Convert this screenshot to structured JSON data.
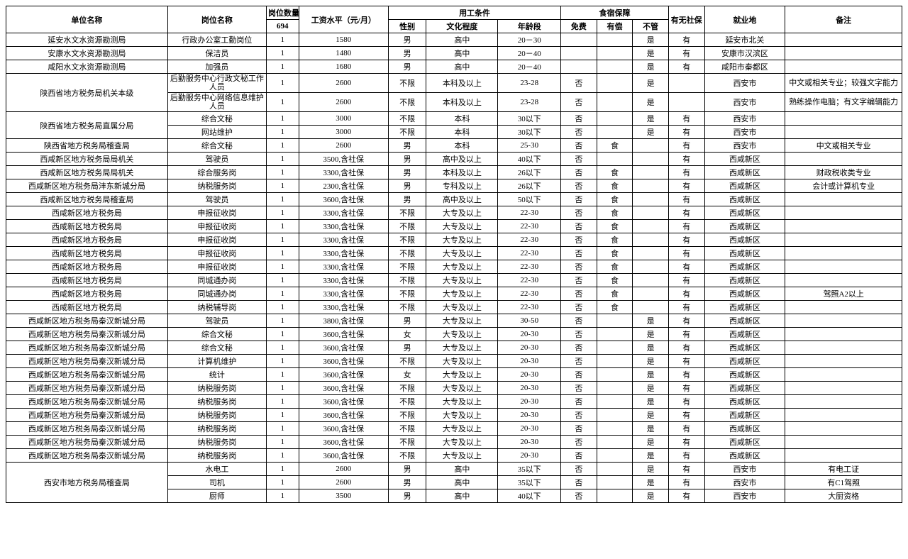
{
  "headers": {
    "unit": "单位名称",
    "position": "岗位名称",
    "qty_group": "岗位数量",
    "qty_total": "694",
    "salary": "工资水平（元/月）",
    "cond_group": "用工条件",
    "sex": "性别",
    "edu": "文化程度",
    "age": "年龄段",
    "board_group": "食宿保障",
    "free": "免费",
    "paid": "有偿",
    "none_": "不管",
    "shebao": "有无社保",
    "loc": "就业地",
    "remark": "备注"
  },
  "rows": [
    {
      "unit": "延安水文水资源勘测局",
      "pos": "行政办公室工勤岗位",
      "qty": "1",
      "sal": "1580",
      "sex": "男",
      "edu": "高中",
      "age": "20－30",
      "free": "",
      "paid": "",
      "none_": "是",
      "she": "有",
      "loc": "延安市北关",
      "rem": ""
    },
    {
      "unit": "安康水文水资源勘测局",
      "pos": "保洁员",
      "qty": "1",
      "sal": "1480",
      "sex": "男",
      "edu": "高中",
      "age": "20－40",
      "free": "",
      "paid": "",
      "none_": "是",
      "she": "有",
      "loc": "安康市汉滨区",
      "rem": ""
    },
    {
      "unit": "咸阳水文水资源勘测局",
      "pos": "加强员",
      "qty": "1",
      "sal": "1680",
      "sex": "男",
      "edu": "高中",
      "age": "20－40",
      "free": "",
      "paid": "",
      "none_": "是",
      "she": "有",
      "loc": "咸阳市秦都区",
      "rem": ""
    },
    {
      "unit": "陕西省地方税务局机关本级",
      "unit_rowspan": 2,
      "pos": "后勤服务中心行政文秘工作人员",
      "qty": "1",
      "sal": "2600",
      "sex": "不限",
      "edu": "本科及以上",
      "age": "23-28",
      "free": "否",
      "paid": "",
      "none_": "是",
      "she": "",
      "loc": "西安市",
      "rem": "中文或相关专业；较强文字能力"
    },
    {
      "pos": "后勤服务中心网络信息维护人员",
      "qty": "1",
      "sal": "2600",
      "sex": "不限",
      "edu": "本科及以上",
      "age": "23-28",
      "free": "否",
      "paid": "",
      "none_": "是",
      "she": "",
      "loc": "西安市",
      "rem": "熟练操作电脑；有文字编辑能力"
    },
    {
      "unit": "陕西省地方税务局直属分局",
      "unit_rowspan": 2,
      "pos": "综合文秘",
      "qty": "1",
      "sal": "3000",
      "sex": "不限",
      "edu": "本科",
      "age": "30以下",
      "free": "否",
      "paid": "",
      "none_": "是",
      "she": "有",
      "loc": "西安市",
      "rem": ""
    },
    {
      "pos": "网站维护",
      "qty": "1",
      "sal": "3000",
      "sex": "不限",
      "edu": "本科",
      "age": "30以下",
      "free": "否",
      "paid": "",
      "none_": "是",
      "she": "有",
      "loc": "西安市",
      "rem": ""
    },
    {
      "unit": "陕西省地方税务局稽查局",
      "pos": "综合文秘",
      "qty": "1",
      "sal": "2600",
      "sex": "男",
      "edu": "本科",
      "age": "25-30",
      "free": "否",
      "paid": "食",
      "none_": "",
      "she": "有",
      "loc": "西安市",
      "rem": "中文或相关专业"
    },
    {
      "unit": "西咸新区地方税务局局机关",
      "pos": "驾驶员",
      "qty": "1",
      "sal": "3500,含社保",
      "sex": "男",
      "edu": "高中及以上",
      "age": "40以下",
      "free": "否",
      "paid": "",
      "none_": "",
      "she": "有",
      "loc": "西咸新区",
      "rem": ""
    },
    {
      "unit": "西咸新区地方税务局局机关",
      "pos": "综合服务岗",
      "qty": "1",
      "sal": "3300,含社保",
      "sex": "男",
      "edu": "本科及以上",
      "age": "26以下",
      "free": "否",
      "paid": "食",
      "none_": "",
      "she": "有",
      "loc": "西咸新区",
      "rem": "财政税收类专业"
    },
    {
      "unit": "西咸新区地方税务局沣东新城分局",
      "pos": "纳税服务岗",
      "qty": "1",
      "sal": "2300,含社保",
      "sex": "男",
      "edu": "专科及以上",
      "age": "26以下",
      "free": "否",
      "paid": "食",
      "none_": "",
      "she": "有",
      "loc": "西咸新区",
      "rem": "会计或计算机专业"
    },
    {
      "unit": "西咸新区地方税务局稽查局",
      "pos": "驾驶员",
      "qty": "1",
      "sal": "3600,含社保",
      "sex": "男",
      "edu": "高中及以上",
      "age": "50以下",
      "free": "否",
      "paid": "食",
      "none_": "",
      "she": "有",
      "loc": "西咸新区",
      "rem": ""
    },
    {
      "unit": "西咸新区地方税务局",
      "pos": "申报征收岗",
      "qty": "1",
      "sal": "3300,含社保",
      "sex": "不限",
      "edu": "大专及以上",
      "age": "22-30",
      "free": "否",
      "paid": "食",
      "none_": "",
      "she": "有",
      "loc": "西咸新区",
      "rem": ""
    },
    {
      "unit": "西咸新区地方税务局",
      "pos": "申报征收岗",
      "qty": "1",
      "sal": "3300,含社保",
      "sex": "不限",
      "edu": "大专及以上",
      "age": "22-30",
      "free": "否",
      "paid": "食",
      "none_": "",
      "she": "有",
      "loc": "西咸新区",
      "rem": ""
    },
    {
      "unit": "西咸新区地方税务局",
      "pos": "申报征收岗",
      "qty": "1",
      "sal": "3300,含社保",
      "sex": "不限",
      "edu": "大专及以上",
      "age": "22-30",
      "free": "否",
      "paid": "食",
      "none_": "",
      "she": "有",
      "loc": "西咸新区",
      "rem": ""
    },
    {
      "unit": "西咸新区地方税务局",
      "pos": "申报征收岗",
      "qty": "1",
      "sal": "3300,含社保",
      "sex": "不限",
      "edu": "大专及以上",
      "age": "22-30",
      "free": "否",
      "paid": "食",
      "none_": "",
      "she": "有",
      "loc": "西咸新区",
      "rem": ""
    },
    {
      "unit": "西咸新区地方税务局",
      "pos": "申报征收岗",
      "qty": "1",
      "sal": "3300,含社保",
      "sex": "不限",
      "edu": "大专及以上",
      "age": "22-30",
      "free": "否",
      "paid": "食",
      "none_": "",
      "she": "有",
      "loc": "西咸新区",
      "rem": ""
    },
    {
      "unit": "西咸新区地方税务局",
      "pos": "同城通办岗",
      "qty": "1",
      "sal": "3300,含社保",
      "sex": "不限",
      "edu": "大专及以上",
      "age": "22-30",
      "free": "否",
      "paid": "食",
      "none_": "",
      "she": "有",
      "loc": "西咸新区",
      "rem": ""
    },
    {
      "unit": "西咸新区地方税务局",
      "pos": "同城通办岗",
      "qty": "1",
      "sal": "3300,含社保",
      "sex": "不限",
      "edu": "大专及以上",
      "age": "22-30",
      "free": "否",
      "paid": "食",
      "none_": "",
      "she": "有",
      "loc": "西咸新区",
      "rem": "驾照A2以上"
    },
    {
      "unit": "西咸新区地方税务局",
      "pos": "纳税辅导岗",
      "qty": "1",
      "sal": "3300,含社保",
      "sex": "不限",
      "edu": "大专及以上",
      "age": "22-30",
      "free": "否",
      "paid": "食",
      "none_": "",
      "she": "有",
      "loc": "西咸新区",
      "rem": ""
    },
    {
      "unit": "西咸新区地方税务局秦汉新城分局",
      "pos": "驾驶员",
      "qty": "1",
      "sal": "3800,含社保",
      "sex": "男",
      "edu": "大专及以上",
      "age": "30-50",
      "free": "否",
      "paid": "",
      "none_": "是",
      "she": "有",
      "loc": "西咸新区",
      "rem": ""
    },
    {
      "unit": "西咸新区地方税务局秦汉新城分局",
      "pos": "综合文秘",
      "qty": "1",
      "sal": "3600,含社保",
      "sex": "女",
      "edu": "大专及以上",
      "age": "20-30",
      "free": "否",
      "paid": "",
      "none_": "是",
      "she": "有",
      "loc": "西咸新区",
      "rem": ""
    },
    {
      "unit": "西咸新区地方税务局秦汉新城分局",
      "pos": "综合文秘",
      "qty": "1",
      "sal": "3600,含社保",
      "sex": "男",
      "edu": "大专及以上",
      "age": "20-30",
      "free": "否",
      "paid": "",
      "none_": "是",
      "she": "有",
      "loc": "西咸新区",
      "rem": ""
    },
    {
      "unit": "西咸新区地方税务局秦汉新城分局",
      "pos": "计算机维护",
      "qty": "1",
      "sal": "3600,含社保",
      "sex": "不限",
      "edu": "大专及以上",
      "age": "20-30",
      "free": "否",
      "paid": "",
      "none_": "是",
      "she": "有",
      "loc": "西咸新区",
      "rem": ""
    },
    {
      "unit": "西咸新区地方税务局秦汉新城分局",
      "pos": "统计",
      "qty": "1",
      "sal": "3600,含社保",
      "sex": "女",
      "edu": "大专及以上",
      "age": "20-30",
      "free": "否",
      "paid": "",
      "none_": "是",
      "she": "有",
      "loc": "西咸新区",
      "rem": ""
    },
    {
      "unit": "西咸新区地方税务局秦汉新城分局",
      "pos": "纳税服务岗",
      "qty": "1",
      "sal": "3600,含社保",
      "sex": "不限",
      "edu": "大专及以上",
      "age": "20-30",
      "free": "否",
      "paid": "",
      "none_": "是",
      "she": "有",
      "loc": "西咸新区",
      "rem": ""
    },
    {
      "unit": "西咸新区地方税务局秦汉新城分局",
      "pos": "纳税服务岗",
      "qty": "1",
      "sal": "3600,含社保",
      "sex": "不限",
      "edu": "大专及以上",
      "age": "20-30",
      "free": "否",
      "paid": "",
      "none_": "是",
      "she": "有",
      "loc": "西咸新区",
      "rem": ""
    },
    {
      "unit": "西咸新区地方税务局秦汉新城分局",
      "pos": "纳税服务岗",
      "qty": "1",
      "sal": "3600,含社保",
      "sex": "不限",
      "edu": "大专及以上",
      "age": "20-30",
      "free": "否",
      "paid": "",
      "none_": "是",
      "she": "有",
      "loc": "西咸新区",
      "rem": ""
    },
    {
      "unit": "西咸新区地方税务局秦汉新城分局",
      "pos": "纳税服务岗",
      "qty": "1",
      "sal": "3600,含社保",
      "sex": "不限",
      "edu": "大专及以上",
      "age": "20-30",
      "free": "否",
      "paid": "",
      "none_": "是",
      "she": "有",
      "loc": "西咸新区",
      "rem": ""
    },
    {
      "unit": "西咸新区地方税务局秦汉新城分局",
      "pos": "纳税服务岗",
      "qty": "1",
      "sal": "3600,含社保",
      "sex": "不限",
      "edu": "大专及以上",
      "age": "20-30",
      "free": "否",
      "paid": "",
      "none_": "是",
      "she": "有",
      "loc": "西咸新区",
      "rem": ""
    },
    {
      "unit": "西咸新区地方税务局秦汉新城分局",
      "pos": "纳税服务岗",
      "qty": "1",
      "sal": "3600,含社保",
      "sex": "不限",
      "edu": "大专及以上",
      "age": "20-30",
      "free": "否",
      "paid": "",
      "none_": "是",
      "she": "有",
      "loc": "西咸新区",
      "rem": ""
    },
    {
      "unit": "西安市地方税务局稽查局",
      "unit_rowspan": 3,
      "pos": "水电工",
      "qty": "1",
      "sal": "2600",
      "sex": "男",
      "edu": "高中",
      "age": "35以下",
      "free": "否",
      "paid": "",
      "none_": "是",
      "she": "有",
      "loc": "西安市",
      "rem": "有电工证"
    },
    {
      "pos": "司机",
      "qty": "1",
      "sal": "2600",
      "sex": "男",
      "edu": "高中",
      "age": "35以下",
      "free": "否",
      "paid": "",
      "none_": "是",
      "she": "有",
      "loc": "西安市",
      "rem": "有C1驾照"
    },
    {
      "pos": "厨师",
      "qty": "1",
      "sal": "3500",
      "sex": "男",
      "edu": "高中",
      "age": "40以下",
      "free": "否",
      "paid": "",
      "none_": "是",
      "she": "有",
      "loc": "西安市",
      "rem": "大厨资格"
    }
  ]
}
